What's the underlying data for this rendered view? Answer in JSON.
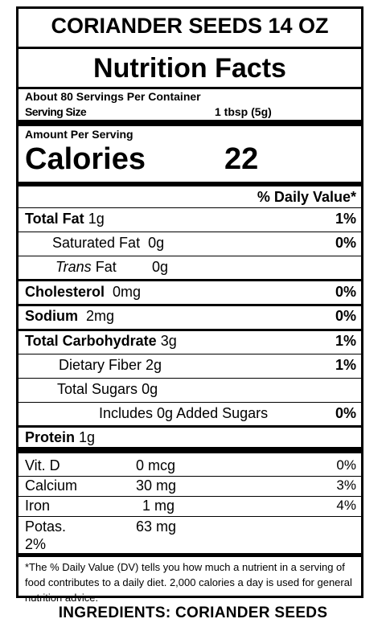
{
  "product_title": "CORIANDER SEEDS 14 OZ",
  "heading": "Nutrition Facts",
  "servings_per_container": "About 80 Servings Per Container",
  "serving_size_label": "Serving Size",
  "serving_size_value": "1 tbsp (5g)",
  "amount_per_serving": "Amount Per Serving",
  "calories_label": "Calories",
  "calories_value": "22",
  "daily_value_header": "% Daily Value*",
  "nutrients": {
    "total_fat": {
      "label": "Total Fat",
      "amount": "1g",
      "dv": "1%"
    },
    "saturated_fat": {
      "label": "Saturated Fat",
      "amount": "0g",
      "dv": "0%"
    },
    "trans_fat": {
      "label_italic": "Trans",
      "label": "Fat",
      "amount": "0g"
    },
    "cholesterol": {
      "label": "Cholesterol",
      "amount": "0mg",
      "dv": "0%"
    },
    "sodium": {
      "label": "Sodium",
      "amount": "2mg",
      "dv": "0%"
    },
    "total_carb": {
      "label": "Total Carbohydrate",
      "amount": "3g",
      "dv": "1%"
    },
    "dietary_fiber": {
      "label": "Dietary Fiber",
      "amount": "2g",
      "dv": "1%"
    },
    "total_sugars": {
      "label": "Total Sugars",
      "amount": "0g"
    },
    "added_sugars": {
      "label": "Includes 0g Added Sugars",
      "dv": "0%"
    },
    "protein": {
      "label": "Protein",
      "amount": "1g"
    }
  },
  "micronutrients": [
    {
      "name": "Vit. D",
      "amount": "0 mcg",
      "dv": "0%"
    },
    {
      "name": "Calcium",
      "amount": "30 mg",
      "dv": "3%"
    },
    {
      "name": "Iron",
      "amount": "1 mg",
      "dv": "4%"
    },
    {
      "name": "Potas.",
      "amount": "63 mg",
      "dv": "2%"
    }
  ],
  "footnote": "*The % Daily Value (DV) tells you how much a nutrient in a serving of food contributes to a daily diet. 2,000 calories a day is used for general nutrition advice.",
  "ingredients": "INGREDIENTS: CORIANDER SEEDS"
}
